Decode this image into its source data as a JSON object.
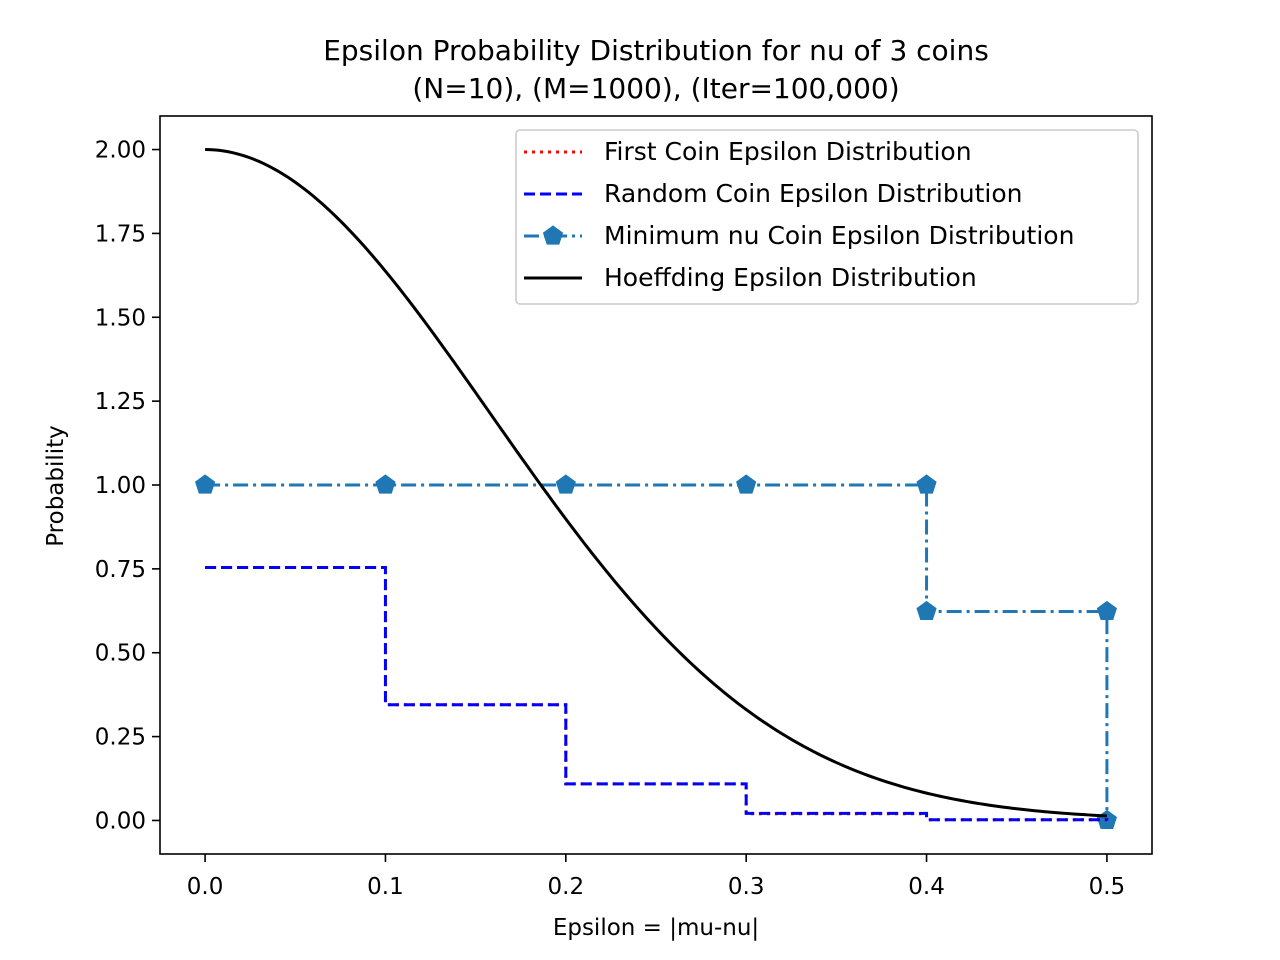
{
  "chart_data": {
    "type": "line",
    "title": "Epsilon Probability Distribution for nu of 3 coins",
    "subtitle": "(N=10), (M=1000), (Iter=100,000)",
    "xlabel": "Epsilon = |mu-nu|",
    "ylabel": "Probability",
    "xlim": [
      -0.025,
      0.525
    ],
    "ylim": [
      -0.1,
      2.1
    ],
    "x_ticks": [
      0.0,
      0.1,
      0.2,
      0.3,
      0.4,
      0.5
    ],
    "x_tick_labels": [
      "0.0",
      "0.1",
      "0.2",
      "0.3",
      "0.4",
      "0.5"
    ],
    "y_ticks": [
      0.0,
      0.25,
      0.5,
      0.75,
      1.0,
      1.25,
      1.5,
      1.75,
      2.0
    ],
    "y_tick_labels": [
      "0.00",
      "0.25",
      "0.50",
      "0.75",
      "1.00",
      "1.25",
      "1.50",
      "1.75",
      "2.00"
    ],
    "grid": false,
    "legend_position": "top-right",
    "series": [
      {
        "name": "First Coin Epsilon Distribution",
        "style": "dotted",
        "step": true,
        "color": "#ff0000",
        "x": [
          0.0,
          0.1,
          0.2,
          0.3,
          0.4,
          0.5
        ],
        "values": [
          0.754,
          0.345,
          0.109,
          0.02,
          0.002,
          0.0
        ]
      },
      {
        "name": "Random Coin Epsilon Distribution",
        "style": "dashed",
        "step": true,
        "color": "#0000ff",
        "x": [
          0.0,
          0.1,
          0.2,
          0.3,
          0.4,
          0.5
        ],
        "values": [
          0.754,
          0.345,
          0.109,
          0.021,
          0.002,
          0.0
        ]
      },
      {
        "name": "Minimum nu Coin Epsilon Distribution",
        "style": "dashdot",
        "step": true,
        "marker": "pentagon",
        "color": "#1f77b4",
        "x": [
          0.0,
          0.1,
          0.2,
          0.3,
          0.4,
          0.5
        ],
        "values": [
          1.0,
          1.0,
          1.0,
          1.0,
          0.623,
          0.0
        ],
        "marker_values": [
          1.0,
          1.0,
          1.0,
          1.0,
          1.0,
          0.623,
          0.623,
          0.0
        ],
        "marker_x": [
          0.0,
          0.1,
          0.2,
          0.3,
          0.4,
          0.4,
          0.5,
          0.5
        ]
      },
      {
        "name": "Hoeffding Epsilon Distribution",
        "style": "solid",
        "step": false,
        "color": "#000000",
        "function": "2*exp(-2*eps^2*N)",
        "N": 10,
        "x_range": [
          0.0,
          0.5
        ]
      }
    ]
  }
}
